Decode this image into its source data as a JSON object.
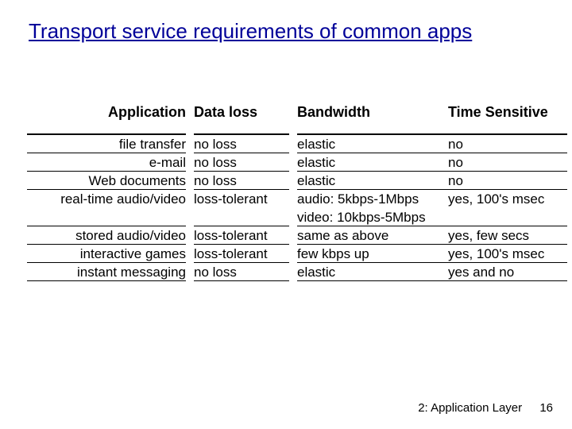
{
  "title": "Transport service requirements of common apps",
  "headers": {
    "application": "Application",
    "data_loss": "Data loss",
    "bandwidth": "Bandwidth",
    "time_sensitive": "Time Sensitive"
  },
  "rows": [
    {
      "app": "file transfer",
      "loss": "no loss",
      "bw": "elastic",
      "time": "no"
    },
    {
      "app": "e-mail",
      "loss": "no loss",
      "bw": "elastic",
      "time": "no"
    },
    {
      "app": "Web documents",
      "loss": "no loss",
      "bw": "elastic",
      "time": "no"
    },
    {
      "app": "real-time audio/video",
      "loss": "loss-tolerant",
      "bw": "audio: 5kbps-1Mbps",
      "time": "yes, 100's msec"
    },
    {
      "app": "",
      "loss": "",
      "bw": "video: 10kbps-5Mbps",
      "time": ""
    },
    {
      "app": "stored audio/video",
      "loss": "loss-tolerant",
      "bw": "same as above",
      "time": "yes, few secs"
    },
    {
      "app": "interactive games",
      "loss": "loss-tolerant",
      "bw": "few kbps up",
      "time": "yes, 100's msec"
    },
    {
      "app": "instant messaging",
      "loss": "no loss",
      "bw": "elastic",
      "time": "yes and no"
    }
  ],
  "footer": {
    "chapter": "2: Application Layer",
    "page": "16"
  },
  "style": {
    "title_color": "#000099",
    "rule_color": "#000000",
    "background": "#ffffff",
    "title_fontsize": 26,
    "header_fontsize": 18,
    "cell_fontsize": 17,
    "footer_fontsize": 15
  }
}
